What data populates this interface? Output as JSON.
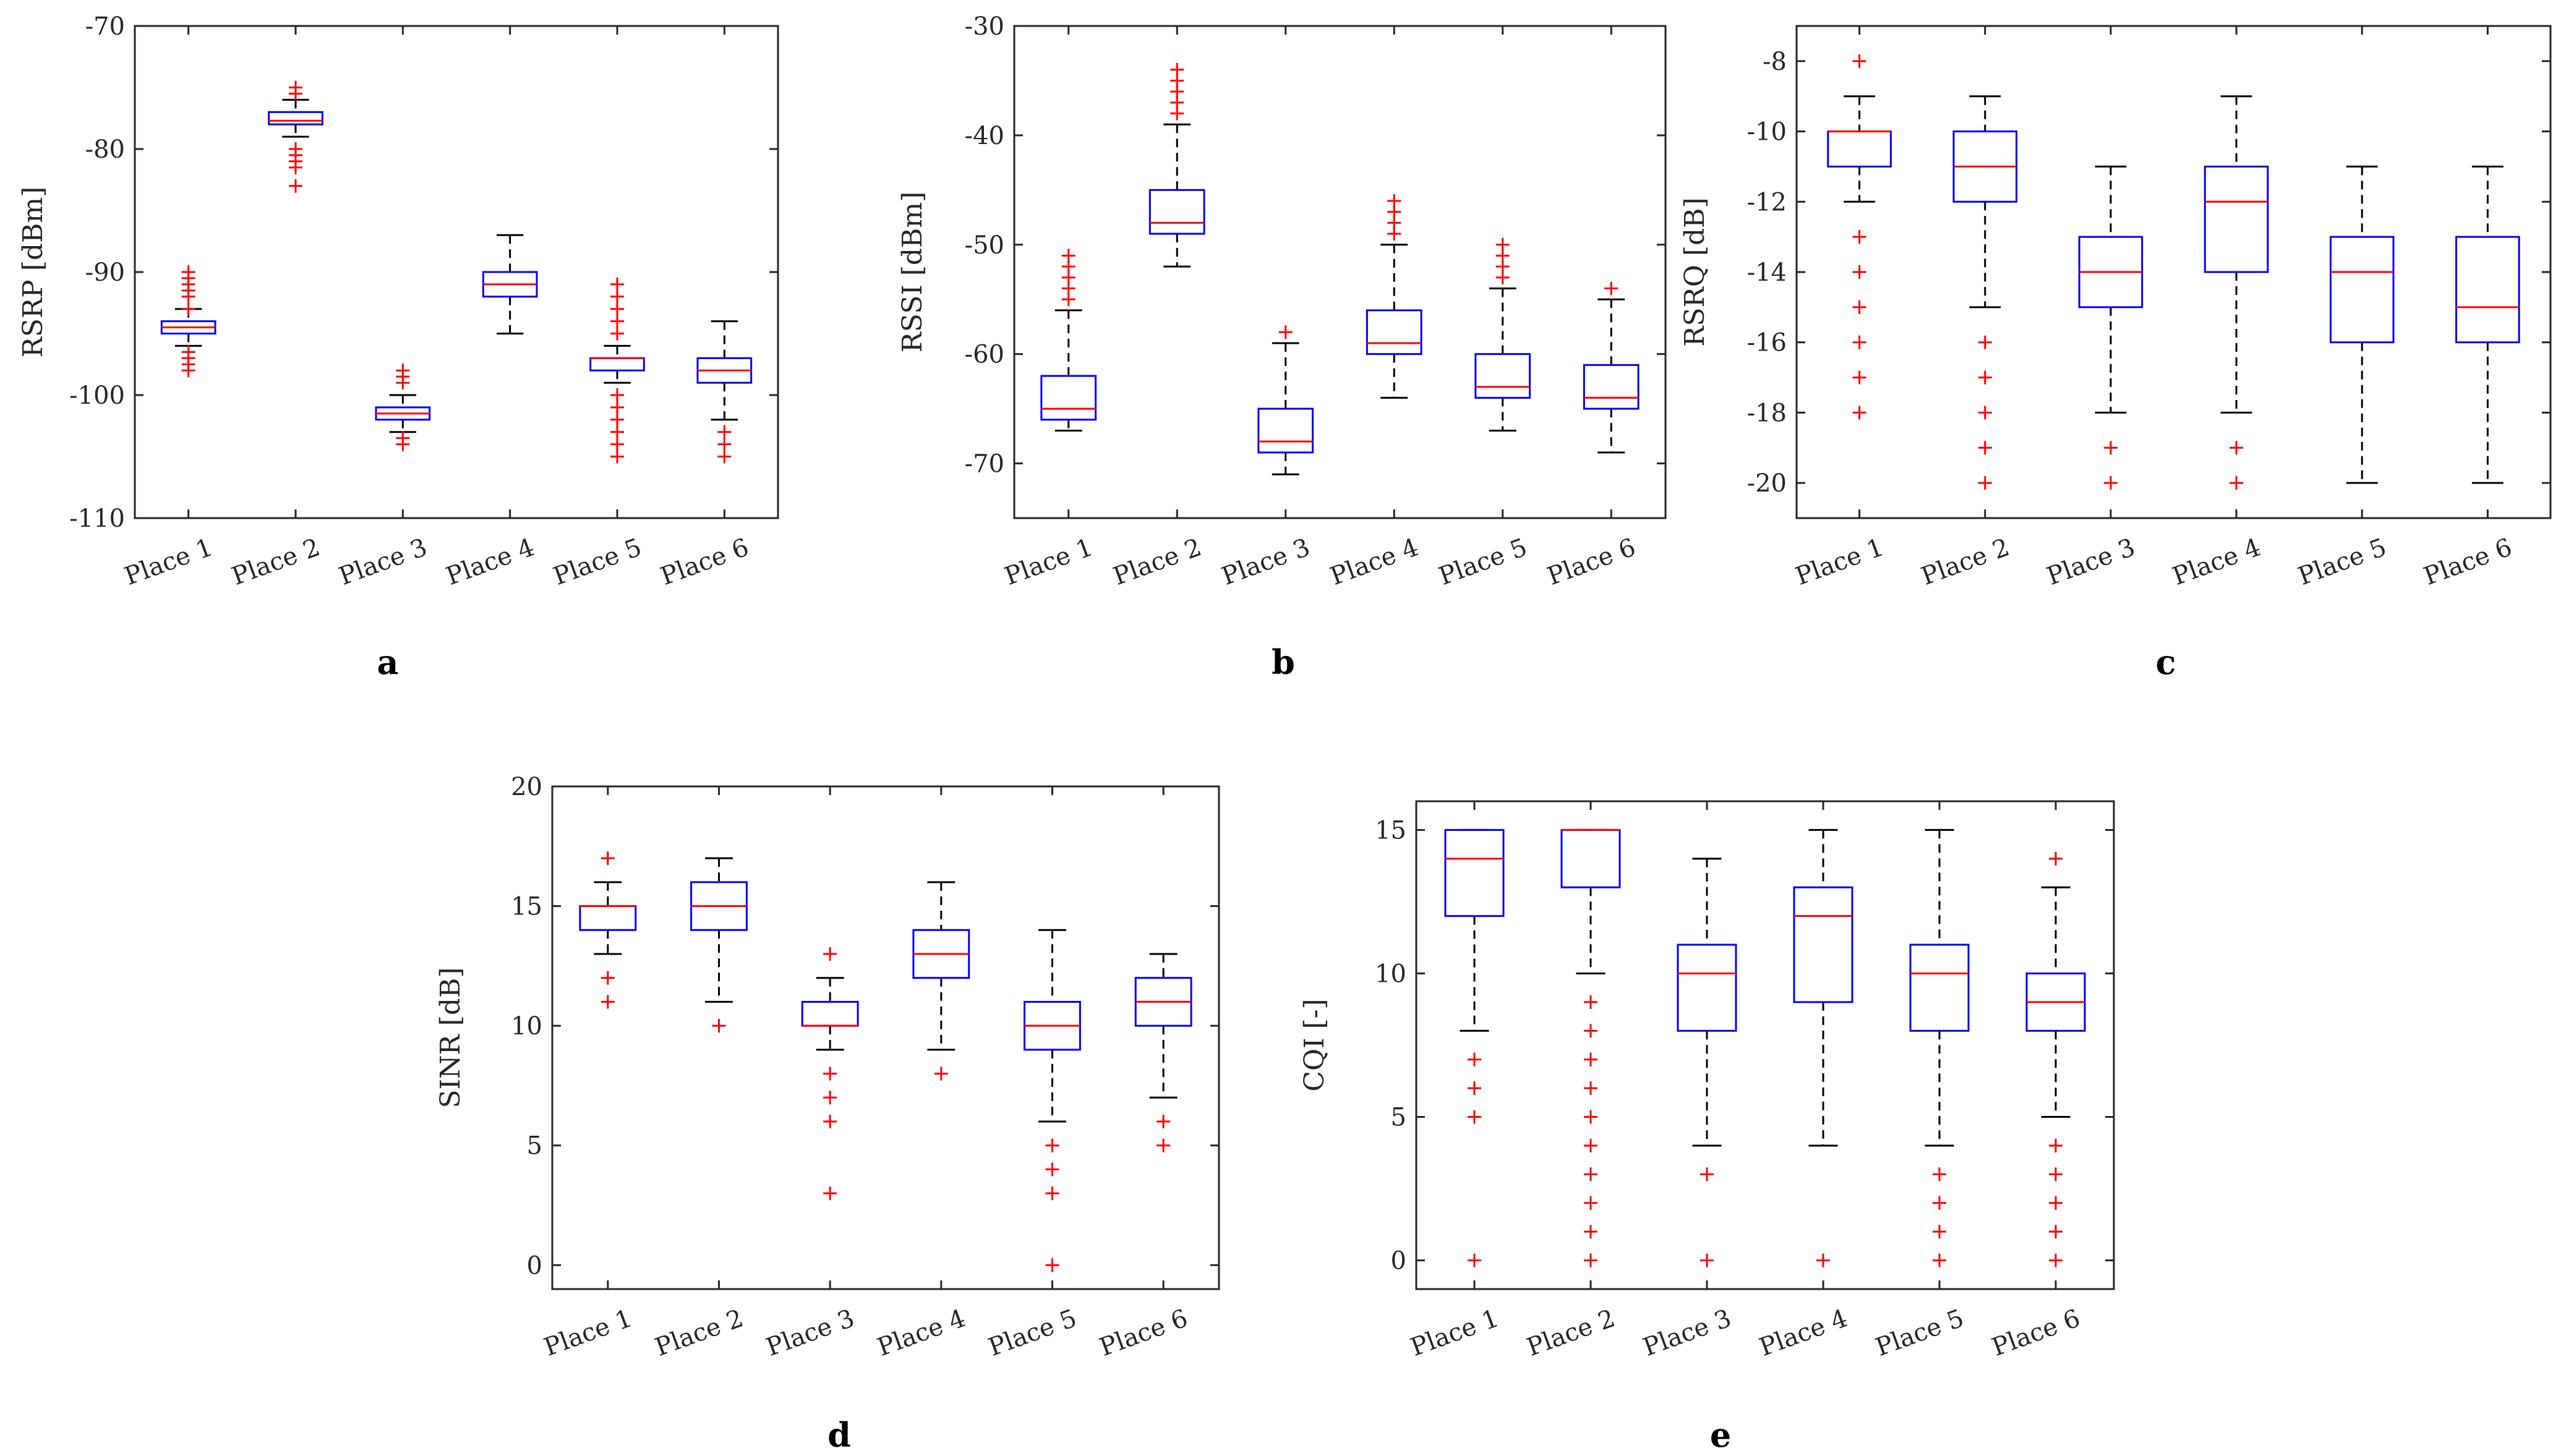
{
  "figure": {
    "panel_labels": [
      "a",
      "b",
      "c",
      "d",
      "e"
    ]
  },
  "colors": {
    "box": "#0000ff",
    "median": "#ff0000",
    "outlier": "#ff0000",
    "whisker": "#000000",
    "axis": "#262626"
  },
  "chart_data": [
    {
      "type": "box",
      "panel": "a",
      "title": "",
      "xlabel": "",
      "ylabel": "RSRP [dBm]",
      "ylim": [
        -110,
        -70
      ],
      "yticks": [
        -110,
        -100,
        -90,
        -80,
        -70
      ],
      "categories": [
        "Place 1",
        "Place 2",
        "Place 3",
        "Place 4",
        "Place 5",
        "Place 6"
      ],
      "boxes": [
        {
          "whisker_low": -96,
          "q1": -95,
          "median": -94.5,
          "q3": -94,
          "whisker_high": -93,
          "outliers": [
            -98,
            -97.5,
            -97,
            -96.5,
            -93,
            -92,
            -91.5,
            -91,
            -90.5,
            -90
          ]
        },
        {
          "whisker_low": -79,
          "q1": -78,
          "median": -77.7,
          "q3": -77,
          "whisker_high": -76,
          "outliers": [
            -83,
            -81.5,
            -81,
            -80.5,
            -80,
            -75.5,
            -75
          ]
        },
        {
          "whisker_low": -103,
          "q1": -102,
          "median": -101.5,
          "q3": -101,
          "whisker_high": -100,
          "outliers": [
            -104,
            -103.5,
            -99,
            -98.5,
            -98
          ]
        },
        {
          "whisker_low": -95,
          "q1": -92,
          "median": -91,
          "q3": -90,
          "whisker_high": -87,
          "outliers": []
        },
        {
          "whisker_low": -99,
          "q1": -98,
          "median": -97,
          "q3": -97,
          "whisker_high": -96,
          "outliers": [
            -105,
            -104,
            -103,
            -102,
            -101,
            -100,
            -95,
            -94,
            -93,
            -92,
            -91
          ]
        },
        {
          "whisker_low": -102,
          "q1": -99,
          "median": -98,
          "q3": -97,
          "whisker_high": -94,
          "outliers": [
            -105,
            -104,
            -103
          ]
        }
      ]
    },
    {
      "type": "box",
      "panel": "b",
      "title": "",
      "xlabel": "",
      "ylabel": "RSSI [dBm]",
      "ylim": [
        -75,
        -30
      ],
      "yticks": [
        -70,
        -60,
        -50,
        -40,
        -30
      ],
      "categories": [
        "Place 1",
        "Place 2",
        "Place 3",
        "Place 4",
        "Place 5",
        "Place 6"
      ],
      "boxes": [
        {
          "whisker_low": -67,
          "q1": -66,
          "median": -65,
          "q3": -62,
          "whisker_high": -56,
          "outliers": [
            -55,
            -54,
            -53,
            -52,
            -51
          ]
        },
        {
          "whisker_low": -52,
          "q1": -49,
          "median": -48,
          "q3": -45,
          "whisker_high": -39,
          "outliers": [
            -38,
            -37,
            -36,
            -35,
            -34
          ]
        },
        {
          "whisker_low": -71,
          "q1": -69,
          "median": -68,
          "q3": -65,
          "whisker_high": -59,
          "outliers": [
            -58
          ]
        },
        {
          "whisker_low": -64,
          "q1": -60,
          "median": -59,
          "q3": -56,
          "whisker_high": -50,
          "outliers": [
            -49,
            -48,
            -47,
            -46
          ]
        },
        {
          "whisker_low": -67,
          "q1": -64,
          "median": -63,
          "q3": -60,
          "whisker_high": -54,
          "outliers": [
            -53,
            -52,
            -51,
            -50
          ]
        },
        {
          "whisker_low": -69,
          "q1": -65,
          "median": -64,
          "q3": -61,
          "whisker_high": -55,
          "outliers": [
            -54
          ]
        }
      ]
    },
    {
      "type": "box",
      "panel": "c",
      "title": "",
      "xlabel": "",
      "ylabel": "RSRQ [dB]",
      "ylim": [
        -21,
        -7
      ],
      "yticks": [
        -20,
        -18,
        -16,
        -14,
        -12,
        -10,
        -8
      ],
      "categories": [
        "Place 1",
        "Place 2",
        "Place 3",
        "Place 4",
        "Place 5",
        "Place 6"
      ],
      "boxes": [
        {
          "whisker_low": -12,
          "q1": -11,
          "median": -10,
          "q3": -10,
          "whisker_high": -9,
          "outliers": [
            -18,
            -17,
            -16,
            -15,
            -14,
            -13,
            -8
          ]
        },
        {
          "whisker_low": -15,
          "q1": -12,
          "median": -11,
          "q3": -10,
          "whisker_high": -9,
          "outliers": [
            -20,
            -19,
            -18,
            -17,
            -16
          ]
        },
        {
          "whisker_low": -18,
          "q1": -15,
          "median": -14,
          "q3": -13,
          "whisker_high": -11,
          "outliers": [
            -20,
            -19
          ]
        },
        {
          "whisker_low": -18,
          "q1": -14,
          "median": -12,
          "q3": -11,
          "whisker_high": -9,
          "outliers": [
            -20,
            -19
          ]
        },
        {
          "whisker_low": -20,
          "q1": -16,
          "median": -14,
          "q3": -13,
          "whisker_high": -11,
          "outliers": []
        },
        {
          "whisker_low": -20,
          "q1": -16,
          "median": -15,
          "q3": -13,
          "whisker_high": -11,
          "outliers": []
        }
      ]
    },
    {
      "type": "box",
      "panel": "d",
      "title": "",
      "xlabel": "",
      "ylabel": "SINR [dB]",
      "ylim": [
        -1,
        20
      ],
      "yticks": [
        0,
        5,
        10,
        15,
        20
      ],
      "categories": [
        "Place 1",
        "Place 2",
        "Place 3",
        "Place 4",
        "Place 5",
        "Place 6"
      ],
      "boxes": [
        {
          "whisker_low": 13,
          "q1": 14,
          "median": 15,
          "q3": 15,
          "whisker_high": 16,
          "outliers": [
            11,
            12,
            17
          ]
        },
        {
          "whisker_low": 11,
          "q1": 14,
          "median": 15,
          "q3": 16,
          "whisker_high": 17,
          "outliers": [
            10
          ]
        },
        {
          "whisker_low": 9,
          "q1": 10,
          "median": 10,
          "q3": 11,
          "whisker_high": 12,
          "outliers": [
            3,
            6,
            7,
            8,
            13
          ]
        },
        {
          "whisker_low": 9,
          "q1": 12,
          "median": 13,
          "q3": 14,
          "whisker_high": 16,
          "outliers": [
            8
          ]
        },
        {
          "whisker_low": 6,
          "q1": 9,
          "median": 10,
          "q3": 11,
          "whisker_high": 14,
          "outliers": [
            0,
            3,
            4,
            5
          ]
        },
        {
          "whisker_low": 7,
          "q1": 10,
          "median": 11,
          "q3": 12,
          "whisker_high": 13,
          "outliers": [
            5,
            6
          ]
        }
      ]
    },
    {
      "type": "box",
      "panel": "e",
      "title": "",
      "xlabel": "",
      "ylabel": "CQI [-]",
      "ylim": [
        -1,
        16
      ],
      "yticks": [
        0,
        5,
        10,
        15
      ],
      "categories": [
        "Place 1",
        "Place 2",
        "Place 3",
        "Place 4",
        "Place 5",
        "Place 6"
      ],
      "boxes": [
        {
          "whisker_low": 8,
          "q1": 12,
          "median": 14,
          "q3": 15,
          "whisker_high": 15,
          "outliers": [
            0,
            5,
            6,
            7
          ]
        },
        {
          "whisker_low": 10,
          "q1": 13,
          "median": 15,
          "q3": 15,
          "whisker_high": 15,
          "outliers": [
            0,
            1,
            2,
            3,
            4,
            5,
            6,
            7,
            8,
            9
          ]
        },
        {
          "whisker_low": 4,
          "q1": 8,
          "median": 10,
          "q3": 11,
          "whisker_high": 14,
          "outliers": [
            0,
            3
          ]
        },
        {
          "whisker_low": 4,
          "q1": 9,
          "median": 12,
          "q3": 13,
          "whisker_high": 15,
          "outliers": [
            0
          ]
        },
        {
          "whisker_low": 4,
          "q1": 8,
          "median": 10,
          "q3": 11,
          "whisker_high": 15,
          "outliers": [
            0,
            1,
            2,
            3
          ]
        },
        {
          "whisker_low": 5,
          "q1": 8,
          "median": 9,
          "q3": 10,
          "whisker_high": 13,
          "outliers": [
            0,
            1,
            2,
            3,
            4,
            14
          ]
        }
      ]
    }
  ]
}
